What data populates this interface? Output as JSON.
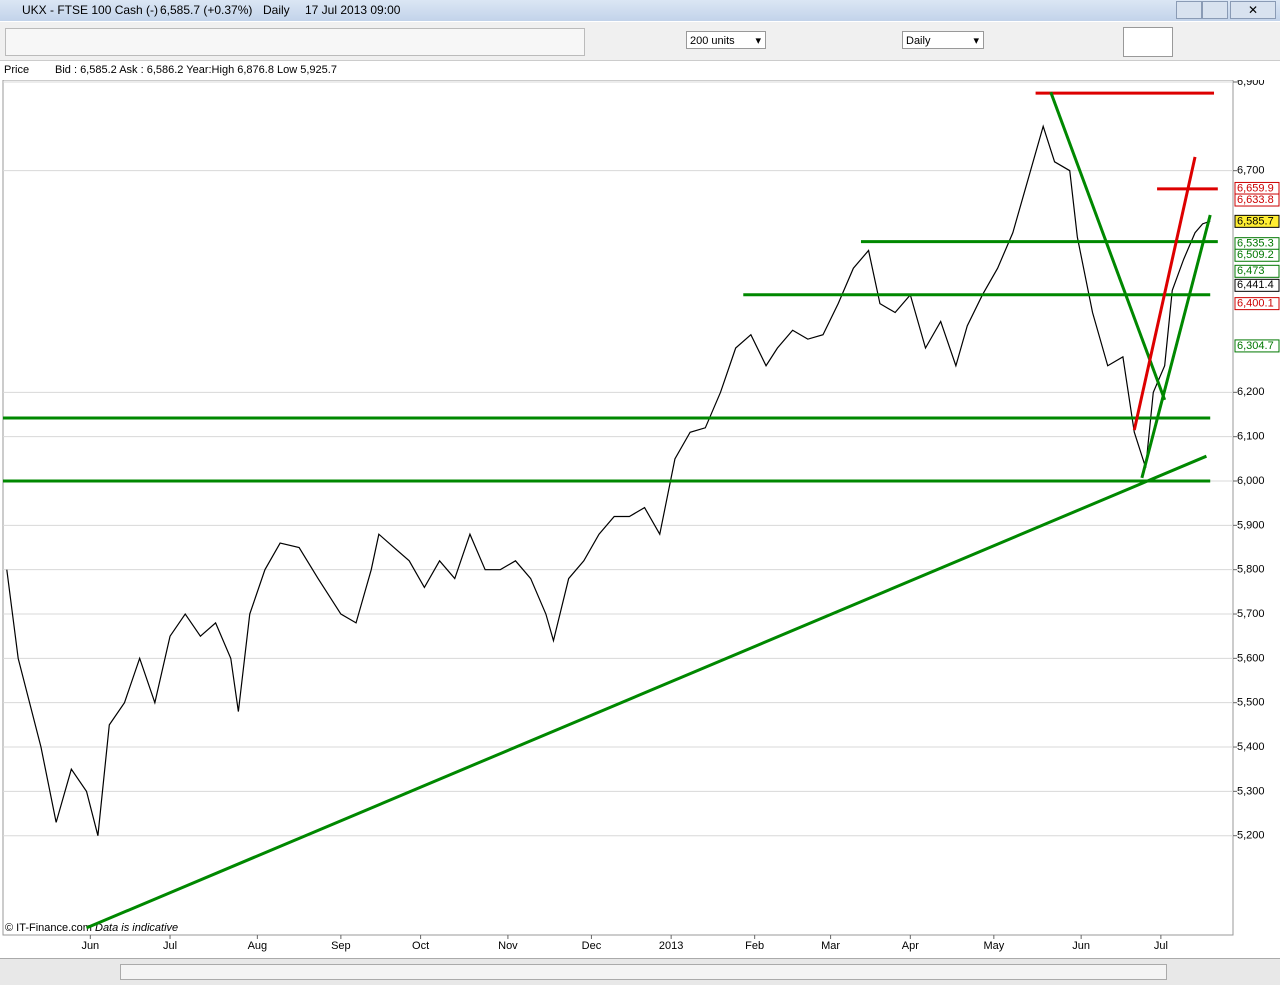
{
  "window": {
    "title": "UKX - FTSE 100 Cash (-)",
    "quote": "6,585.7 (+0.37%)",
    "interval": "Daily",
    "timestamp": "17 Jul 2013 09:00"
  },
  "toolbar": {
    "units": "200 units",
    "period": "Daily"
  },
  "info_bar": {
    "label": "Price",
    "text": "Bid : 6,585.2 Ask : 6,586.2 Year:High 6,876.8 Low 5,925.7"
  },
  "footer": {
    "copyright": "© IT-Finance.com",
    "note": "Data is indicative"
  },
  "chart_data": {
    "type": "line",
    "color": "#000000",
    "x": [
      1,
      4,
      10,
      14,
      18,
      22,
      25,
      28,
      32,
      36,
      40,
      44,
      48,
      52,
      56,
      60,
      62,
      65,
      69,
      73,
      78,
      83,
      89,
      93,
      97,
      99,
      103,
      107,
      111,
      115,
      119,
      123,
      127,
      131,
      135,
      139,
      143,
      145,
      149,
      153,
      157,
      161,
      165,
      169,
      173,
      177,
      181,
      185,
      189,
      193,
      197,
      201,
      204,
      208,
      212,
      216,
      220,
      224,
      228,
      231,
      235,
      239,
      243,
      247,
      251,
      254,
      258,
      262,
      266,
      270,
      274,
      277,
      281,
      283,
      287,
      291,
      295,
      298,
      301,
      303,
      306,
      308,
      311,
      314,
      316,
      318
    ],
    "series": [
      {
        "name": "UKX",
        "color": "#000000",
        "values": [
          5800,
          5600,
          5400,
          5230,
          5350,
          5300,
          5200,
          5450,
          5500,
          5600,
          5500,
          5650,
          5700,
          5650,
          5680,
          5600,
          5480,
          5700,
          5800,
          5860,
          5850,
          5780,
          5700,
          5680,
          5800,
          5880,
          5850,
          5820,
          5760,
          5820,
          5780,
          5880,
          5800,
          5800,
          5820,
          5780,
          5700,
          5640,
          5780,
          5820,
          5880,
          5920,
          5920,
          5940,
          5880,
          6050,
          6110,
          6120,
          6200,
          6300,
          6330,
          6260,
          6300,
          6340,
          6320,
          6330,
          6400,
          6480,
          6520,
          6400,
          6380,
          6420,
          6300,
          6360,
          6260,
          6350,
          6420,
          6480,
          6560,
          6680,
          6800,
          6720,
          6700,
          6550,
          6380,
          6260,
          6280,
          6110,
          6030,
          6200,
          6260,
          6430,
          6500,
          6560,
          6580,
          6586
        ]
      }
    ],
    "xlim": [
      0,
      324
    ],
    "xticks": [
      {
        "value": 23,
        "label": "Jun"
      },
      {
        "value": 44,
        "label": "Jul"
      },
      {
        "value": 67,
        "label": "Aug"
      },
      {
        "value": 89,
        "label": "Sep"
      },
      {
        "value": 110,
        "label": "Oct"
      },
      {
        "value": 133,
        "label": "Nov"
      },
      {
        "value": 155,
        "label": "Dec"
      },
      {
        "value": 176,
        "label": "2013"
      },
      {
        "value": 198,
        "label": "Feb"
      },
      {
        "value": 218,
        "label": "Mar"
      },
      {
        "value": 239,
        "label": "Apr"
      },
      {
        "value": 261,
        "label": "May"
      },
      {
        "value": 284,
        "label": "Jun"
      },
      {
        "value": 305,
        "label": "Jul"
      }
    ],
    "ylim": [
      4976,
      6900
    ],
    "yticks": [
      {
        "value": 5200,
        "label": "5,200"
      },
      {
        "value": 5300,
        "label": "5,300"
      },
      {
        "value": 5400,
        "label": "5,400"
      },
      {
        "value": 5500,
        "label": "5,500"
      },
      {
        "value": 5600,
        "label": "5,600"
      },
      {
        "value": 5700,
        "label": "5,700"
      },
      {
        "value": 5800,
        "label": "5,800"
      },
      {
        "value": 5900,
        "label": "5,900"
      },
      {
        "value": 6000,
        "label": "6,000"
      },
      {
        "value": 6100,
        "label": "6,100"
      },
      {
        "value": 6200,
        "label": "6,200"
      },
      {
        "value": 6700,
        "label": "6,700"
      },
      {
        "value": 6900,
        "label": "6,900"
      }
    ],
    "grid": true,
    "price_labels": [
      {
        "value": 6659.9,
        "label": "6,659.9",
        "color": "#cc0000"
      },
      {
        "value": 6633.8,
        "label": "6,633.8",
        "color": "#cc0000"
      },
      {
        "value": 6585.7,
        "label": "6,585.7",
        "color": "#000000"
      },
      {
        "value": 6535.3,
        "label": "6,535.3",
        "color": "#007700"
      },
      {
        "value": 6509.2,
        "label": "6,509.2",
        "color": "#007700"
      },
      {
        "value": 6473,
        "label": "6,473",
        "color": "#007700"
      },
      {
        "value": 6441.4,
        "label": "6,441.4",
        "color": "#000000"
      },
      {
        "value": 6400.1,
        "label": "6,400.1",
        "color": "#cc0000"
      },
      {
        "value": 6304.7,
        "label": "6,304.7",
        "color": "#007700"
      }
    ],
    "drawings": [
      {
        "color": "#dd0000",
        "x": [
          272,
          319
        ],
        "y": [
          6875,
          6875
        ]
      },
      {
        "color": "#008800",
        "x": [
          226,
          320
        ],
        "y": [
          6540,
          6540
        ]
      },
      {
        "color": "#008800",
        "x": [
          195,
          318
        ],
        "y": [
          6420,
          6420
        ]
      },
      {
        "color": "#008800",
        "x": [
          0,
          318
        ],
        "y": [
          6142,
          6142
        ]
      },
      {
        "color": "#008800",
        "x": [
          0,
          318
        ],
        "y": [
          6000,
          6000
        ]
      },
      {
        "color": "#008800",
        "x": [
          22,
          317
        ],
        "y": [
          4992,
          6056
        ]
      },
      {
        "color": "#008800",
        "x": [
          276,
          306
        ],
        "y": [
          6877,
          6183
        ]
      },
      {
        "color": "#008800",
        "x": [
          300,
          318
        ],
        "y": [
          6007,
          6600
        ]
      },
      {
        "color": "#dd0000",
        "x": [
          298,
          314
        ],
        "y": [
          6115,
          6731
        ]
      },
      {
        "color": "#dd0000",
        "x": [
          304,
          320
        ],
        "y": [
          6659,
          6659
        ]
      }
    ]
  }
}
